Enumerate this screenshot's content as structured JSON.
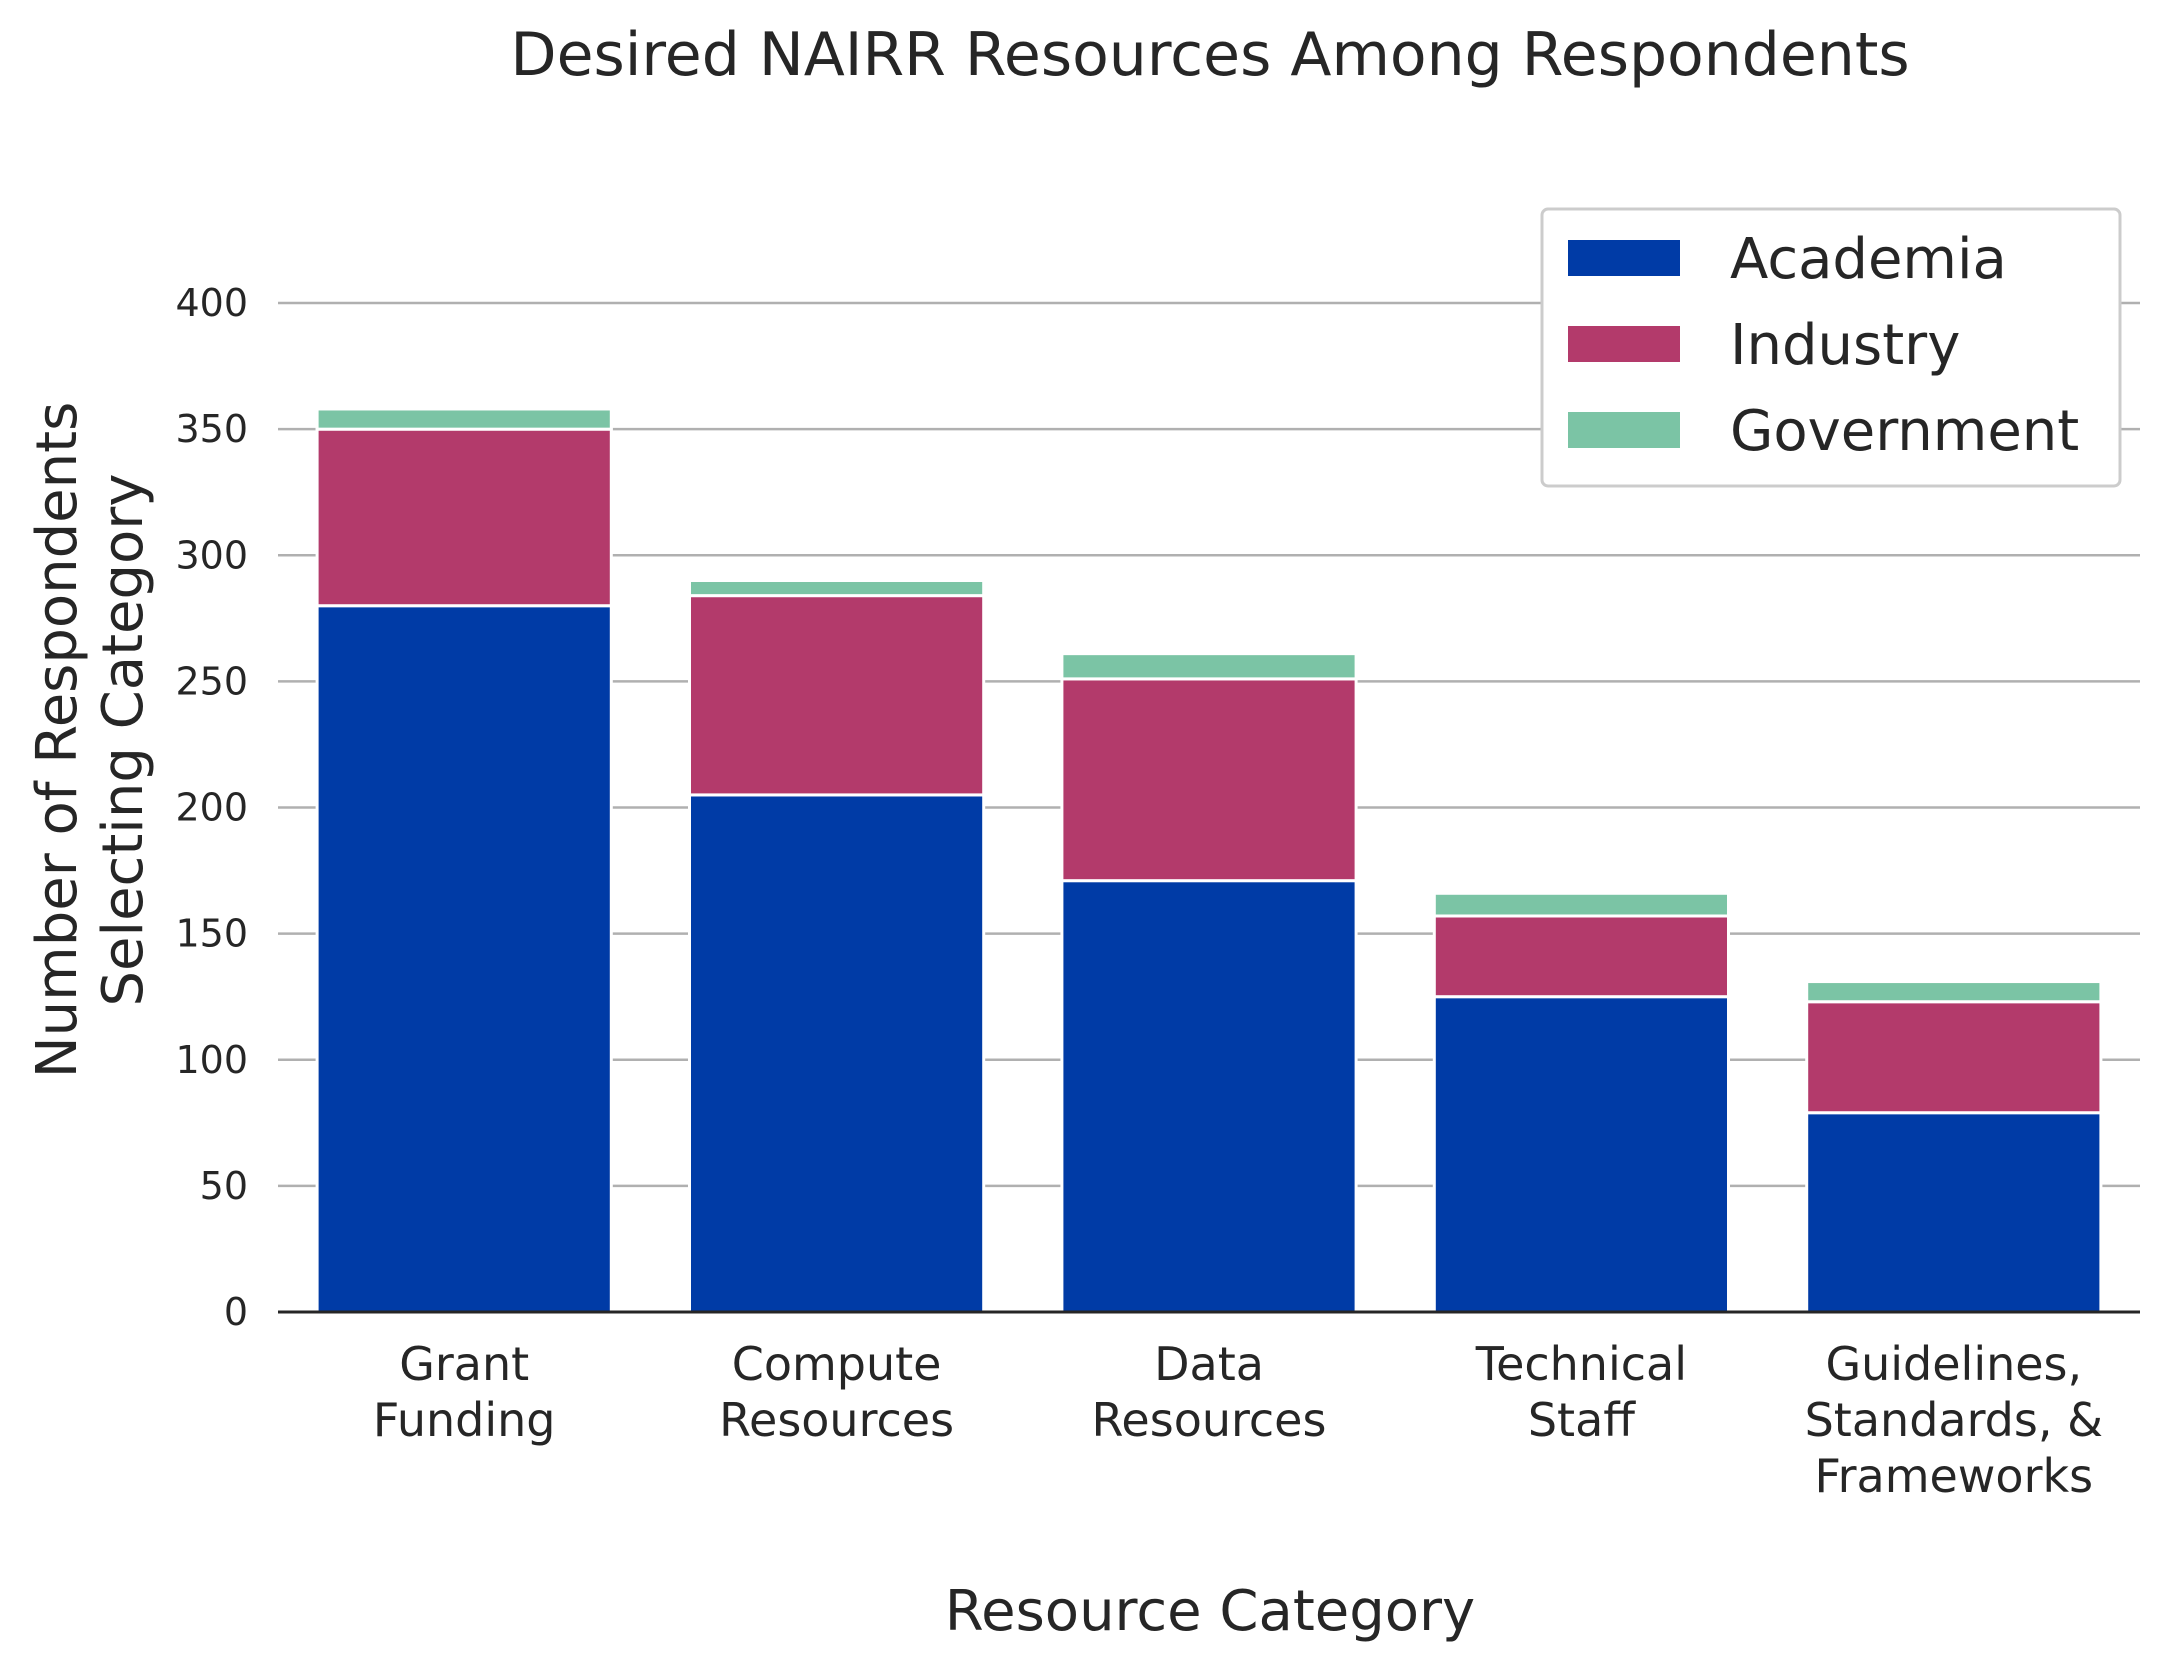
{
  "chart_data": {
    "type": "bar",
    "stacked": true,
    "title": "Desired NAIRR Resources Among Respondents",
    "xlabel": "Resource Category",
    "ylabel": [
      "Number of Respondents",
      "Selecting Category"
    ],
    "ylim": [
      0,
      430
    ],
    "yticks": [
      0,
      50,
      100,
      150,
      200,
      250,
      300,
      350,
      400
    ],
    "grid": "horizontal",
    "legend_position": "top-right",
    "categories": [
      [
        "Grant",
        "Funding"
      ],
      [
        "Compute",
        "Resources"
      ],
      [
        "Data",
        "Resources"
      ],
      [
        "Technical",
        "Staff"
      ],
      [
        "Guidelines,",
        "Standards, &",
        "Frameworks"
      ]
    ],
    "series": [
      {
        "name": "Academia",
        "color": "#003ba6",
        "values": [
          280,
          205,
          171,
          125,
          79
        ]
      },
      {
        "name": "Industry",
        "color": "#b33a6b",
        "values": [
          70,
          79,
          80,
          32,
          44
        ]
      },
      {
        "name": "Government",
        "color": "#7bc4a5",
        "values": [
          8,
          6,
          10,
          9,
          8
        ]
      }
    ]
  }
}
